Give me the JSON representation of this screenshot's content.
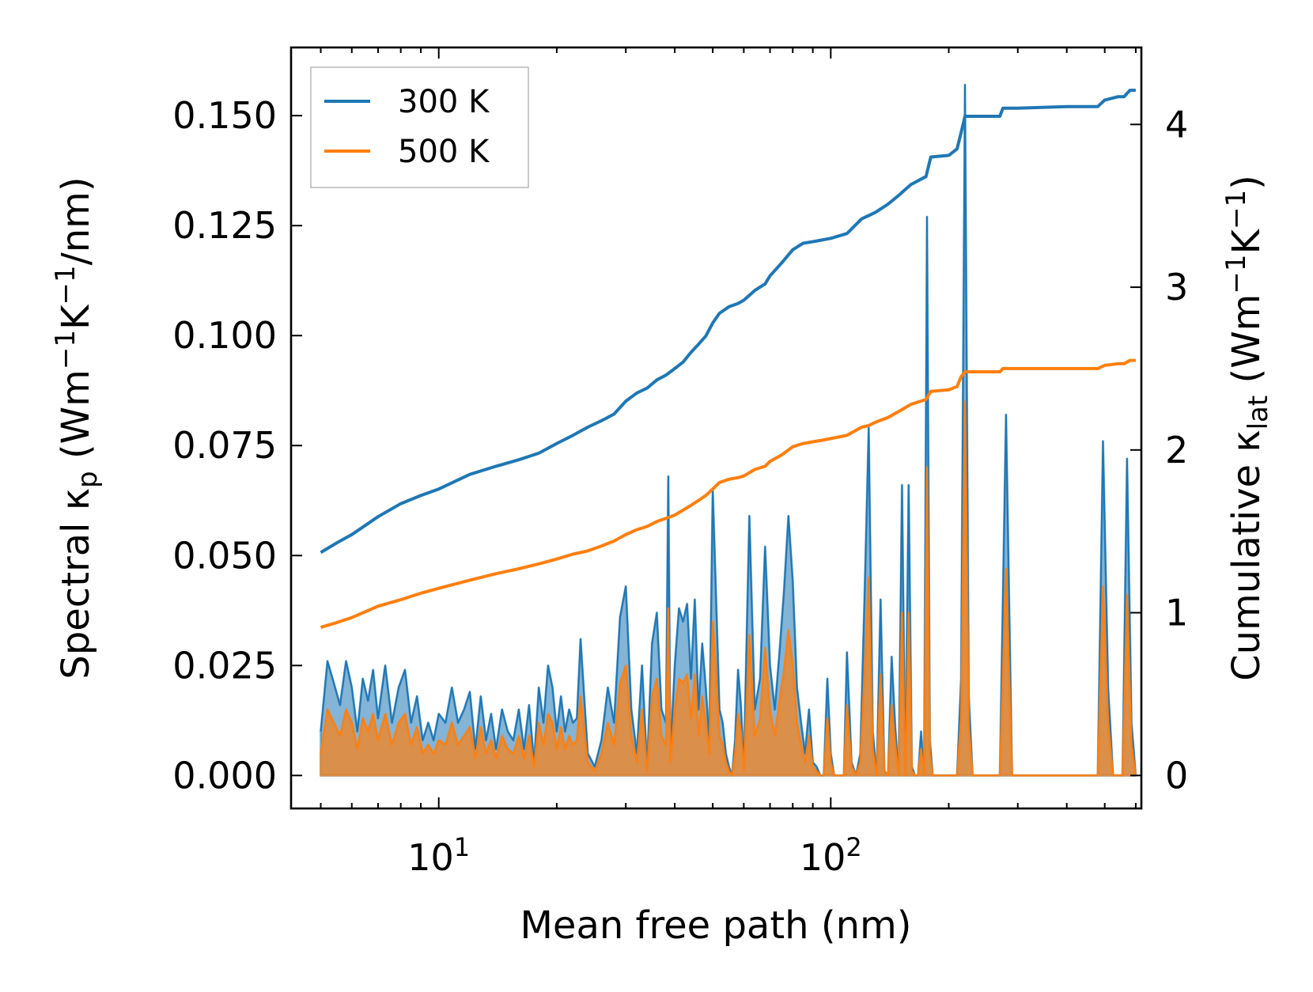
{
  "chart_data": {
    "type": "area",
    "xlabel": "Mean free path (nm)",
    "ylabel": "Spectral κ_p (Wm⁻¹K⁻¹/nm)",
    "ylabel_parts": {
      "pre": "Spectral κ",
      "sub": "p",
      "mid": " (Wm",
      "sup1": "−1",
      "k": "K",
      "sup2": "−1",
      "post": "/nm)"
    },
    "y2label": "Cumulative κ_lat (Wm⁻¹K⁻¹)",
    "y2label_parts": {
      "pre": "Cumulative κ",
      "sub": "lat",
      "mid": " (Wm",
      "sup1": "−1",
      "k": "K",
      "sup2": "−1",
      "post": ")"
    },
    "xscale": "log",
    "xlim": [
      4.2,
      620
    ],
    "ylim": [
      -0.0075,
      0.1655
    ],
    "y2lim": [
      -0.2027,
      4.473
    ],
    "x_ticks": [
      {
        "value": 10,
        "base": "10",
        "exp": "1"
      },
      {
        "value": 100,
        "base": "10",
        "exp": "2"
      }
    ],
    "y_ticks": [
      0.0,
      0.025,
      0.05,
      0.075,
      0.1,
      0.125,
      0.15
    ],
    "y_tick_labels": [
      "0.000",
      "0.025",
      "0.050",
      "0.075",
      "0.100",
      "0.125",
      "0.150"
    ],
    "y2_ticks": [
      0,
      1,
      2,
      3,
      4
    ],
    "y2_tick_labels": [
      "0",
      "1",
      "2",
      "3",
      "4"
    ],
    "legend": {
      "position": "top-left",
      "entries": [
        {
          "label": "300 K",
          "color": "#1f77b4"
        },
        {
          "label": "500 K",
          "color": "#ff7f0e"
        }
      ]
    },
    "spectral_series": [
      {
        "name": "300 K",
        "color": "#1f77b4",
        "x": [
          5.0,
          5.2,
          5.4,
          5.6,
          5.8,
          6.0,
          6.2,
          6.4,
          6.6,
          6.8,
          7.0,
          7.3,
          7.6,
          7.9,
          8.2,
          8.5,
          8.8,
          9.1,
          9.4,
          9.7,
          10.0,
          10.4,
          10.8,
          11.2,
          11.6,
          12.0,
          12.4,
          12.8,
          13.2,
          13.6,
          14.0,
          14.5,
          15.0,
          15.5,
          16.0,
          16.5,
          17.0,
          17.5,
          18.0,
          18.5,
          19.0,
          19.5,
          20.0,
          20.5,
          21.0,
          21.5,
          22.0,
          22.5,
          23.0,
          24.0,
          25.0,
          26.0,
          27.0,
          28.0,
          29.0,
          30.0,
          31.0,
          32.0,
          33.0,
          34.0,
          35.0,
          36.0,
          37.0,
          38.0,
          38.5,
          39.0,
          40.0,
          41.0,
          42.0,
          43.0,
          44.0,
          45.0,
          46.0,
          47.0,
          48.0,
          49.0,
          50.0,
          51.0,
          52.0,
          53.0,
          54.0,
          55.0,
          56.0,
          57.0,
          58.0,
          59.0,
          60.0,
          62.0,
          64.0,
          66.0,
          68.0,
          70.0,
          72.0,
          74.0,
          76.0,
          78.0,
          80.0,
          82.0,
          84.0,
          86.0,
          88.0,
          90.0,
          92.0,
          94.0,
          96.0,
          98.0,
          100.0,
          102.0,
          104.0,
          106.0,
          108.0,
          110.0,
          113.0,
          116.0,
          119.0,
          122.0,
          125.0,
          128.0,
          131.0,
          134.0,
          137.0,
          140.0,
          143.0,
          146.0,
          149.0,
          152.0,
          155.0,
          158.0,
          161.0,
          164.0,
          167.0,
          170.0,
          173.0,
          176.0,
          179.0,
          182.0,
          185.0,
          200.0,
          210.0,
          215.0,
          220.0,
          225.0,
          230.0,
          240.0,
          250.0,
          260.0,
          270.0,
          280.0,
          290.0,
          300.0,
          400.0,
          480.0,
          495.0,
          510.0,
          525.0,
          540.0,
          555.0,
          570.0,
          585.0,
          600.0
        ],
        "values": [
          0.01,
          0.026,
          0.021,
          0.016,
          0.026,
          0.02,
          0.01,
          0.022,
          0.017,
          0.024,
          0.013,
          0.025,
          0.012,
          0.02,
          0.024,
          0.012,
          0.018,
          0.008,
          0.012,
          0.008,
          0.014,
          0.012,
          0.02,
          0.012,
          0.015,
          0.019,
          0.006,
          0.018,
          0.008,
          0.014,
          0.006,
          0.015,
          0.01,
          0.008,
          0.015,
          0.006,
          0.016,
          0.003,
          0.02,
          0.012,
          0.025,
          0.02,
          0.01,
          0.018,
          0.01,
          0.015,
          0.012,
          0.013,
          0.031,
          0.005,
          0.002,
          0.008,
          0.02,
          0.012,
          0.036,
          0.043,
          0.015,
          0.005,
          0.025,
          0.002,
          0.03,
          0.037,
          0.015,
          0.012,
          0.068,
          0.005,
          0.025,
          0.038,
          0.035,
          0.039,
          0.022,
          0.04,
          0.015,
          0.03,
          0.02,
          0.008,
          0.065,
          0.04,
          0.015,
          0.012,
          0.005,
          0.002,
          0.0,
          0.008,
          0.024,
          0.016,
          0.002,
          0.059,
          0.015,
          0.022,
          0.052,
          0.025,
          0.015,
          0.028,
          0.042,
          0.059,
          0.044,
          0.02,
          0.012,
          0.005,
          0.015,
          0.003,
          0.002,
          0.0,
          0.0,
          0.022,
          0.005,
          0.0,
          0.0,
          0.0,
          0.0,
          0.028,
          0.003,
          0.0,
          0.005,
          0.041,
          0.079,
          0.01,
          0.0,
          0.04,
          0.001,
          0.0,
          0.027,
          0.011,
          0.0,
          0.066,
          0.0,
          0.066,
          0.002,
          0.0,
          0.0,
          0.01,
          0.0,
          0.127,
          0.008,
          0.0,
          0.0,
          0.0,
          0.0,
          0.022,
          0.157,
          0.018,
          0.0,
          0.0,
          0.0,
          0.0,
          0.0,
          0.082,
          0.0,
          0.0,
          0.0,
          0.0,
          0.076,
          0.02,
          0.0,
          0.0,
          0.0,
          0.072,
          0.012,
          0.0
        ]
      },
      {
        "name": "500 K",
        "color": "#ff7f0e",
        "x": [
          5.0,
          5.2,
          5.4,
          5.6,
          5.8,
          6.0,
          6.2,
          6.4,
          6.6,
          6.8,
          7.0,
          7.3,
          7.6,
          7.9,
          8.2,
          8.5,
          8.8,
          9.1,
          9.4,
          9.7,
          10.0,
          10.4,
          10.8,
          11.2,
          11.6,
          12.0,
          12.4,
          12.8,
          13.2,
          13.6,
          14.0,
          14.5,
          15.0,
          15.5,
          16.0,
          16.5,
          17.0,
          17.5,
          18.0,
          18.5,
          19.0,
          19.5,
          20.0,
          20.5,
          21.0,
          21.5,
          22.0,
          22.5,
          23.0,
          24.0,
          25.0,
          26.0,
          27.0,
          28.0,
          29.0,
          30.0,
          31.0,
          32.0,
          33.0,
          34.0,
          35.0,
          36.0,
          37.0,
          38.0,
          38.5,
          39.0,
          40.0,
          41.0,
          42.0,
          43.0,
          44.0,
          45.0,
          46.0,
          47.0,
          48.0,
          49.0,
          50.0,
          51.0,
          52.0,
          53.0,
          54.0,
          55.0,
          56.0,
          57.0,
          58.0,
          59.0,
          60.0,
          62.0,
          64.0,
          66.0,
          68.0,
          70.0,
          72.0,
          74.0,
          76.0,
          78.0,
          80.0,
          82.0,
          84.0,
          86.0,
          88.0,
          90.0,
          92.0,
          94.0,
          96.0,
          98.0,
          100.0,
          102.0,
          104.0,
          106.0,
          108.0,
          110.0,
          113.0,
          116.0,
          119.0,
          122.0,
          125.0,
          128.0,
          131.0,
          134.0,
          137.0,
          140.0,
          143.0,
          146.0,
          149.0,
          152.0,
          155.0,
          158.0,
          161.0,
          164.0,
          167.0,
          170.0,
          173.0,
          176.0,
          179.0,
          182.0,
          185.0,
          200.0,
          210.0,
          215.0,
          220.0,
          225.0,
          230.0,
          240.0,
          250.0,
          260.0,
          270.0,
          280.0,
          290.0,
          300.0,
          400.0,
          480.0,
          495.0,
          510.0,
          525.0,
          540.0,
          555.0,
          570.0,
          585.0,
          600.0
        ],
        "values": [
          0.005,
          0.015,
          0.012,
          0.009,
          0.015,
          0.012,
          0.006,
          0.013,
          0.01,
          0.014,
          0.008,
          0.014,
          0.007,
          0.012,
          0.014,
          0.007,
          0.011,
          0.005,
          0.007,
          0.005,
          0.008,
          0.007,
          0.012,
          0.007,
          0.009,
          0.011,
          0.004,
          0.011,
          0.005,
          0.008,
          0.004,
          0.009,
          0.006,
          0.005,
          0.009,
          0.004,
          0.009,
          0.002,
          0.012,
          0.007,
          0.014,
          0.012,
          0.006,
          0.011,
          0.006,
          0.009,
          0.007,
          0.008,
          0.018,
          0.003,
          0.001,
          0.005,
          0.012,
          0.007,
          0.021,
          0.025,
          0.009,
          0.003,
          0.015,
          0.001,
          0.018,
          0.022,
          0.009,
          0.007,
          0.038,
          0.003,
          0.015,
          0.022,
          0.021,
          0.023,
          0.013,
          0.023,
          0.009,
          0.018,
          0.012,
          0.005,
          0.035,
          0.023,
          0.009,
          0.007,
          0.003,
          0.001,
          0.0,
          0.005,
          0.014,
          0.01,
          0.001,
          0.032,
          0.009,
          0.013,
          0.029,
          0.015,
          0.009,
          0.017,
          0.024,
          0.033,
          0.025,
          0.012,
          0.007,
          0.003,
          0.009,
          0.002,
          0.001,
          0.0,
          0.0,
          0.013,
          0.003,
          0.0,
          0.0,
          0.0,
          0.0,
          0.016,
          0.002,
          0.0,
          0.003,
          0.024,
          0.045,
          0.006,
          0.0,
          0.023,
          0.001,
          0.0,
          0.016,
          0.007,
          0.0,
          0.037,
          0.0,
          0.037,
          0.001,
          0.0,
          0.0,
          0.006,
          0.0,
          0.07,
          0.005,
          0.0,
          0.0,
          0.0,
          0.0,
          0.013,
          0.085,
          0.011,
          0.0,
          0.0,
          0.0,
          0.0,
          0.0,
          0.047,
          0.0,
          0.0,
          0.0,
          0.0,
          0.043,
          0.012,
          0.0,
          0.0,
          0.0,
          0.041,
          0.007,
          0.0
        ]
      }
    ],
    "cumulative_series": [
      {
        "name": "300 K",
        "color": "#1f77b4",
        "x": [
          5.0,
          5.5,
          6.0,
          7.0,
          8.0,
          9.0,
          10.0,
          12.0,
          14.0,
          16.0,
          18.0,
          20.0,
          22.0,
          24.0,
          26.0,
          28.0,
          30.0,
          32.0,
          34.0,
          36.0,
          38.0,
          40.0,
          42.0,
          44.0,
          46.0,
          48.0,
          50.0,
          52.0,
          55.0,
          58.0,
          60.0,
          64.0,
          68.0,
          70.0,
          75.0,
          80.0,
          85.0,
          90.0,
          95.0,
          100.0,
          110.0,
          120.0,
          125.0,
          130.0,
          140.0,
          150.0,
          160.0,
          175.0,
          180.0,
          200.0,
          210.0,
          215.0,
          220.0,
          250.0,
          270.0,
          275.0,
          300.0,
          400.0,
          480.0,
          500.0,
          540.0,
          560.0,
          580.0,
          600.0
        ],
        "values": [
          1.37,
          1.43,
          1.48,
          1.59,
          1.67,
          1.72,
          1.76,
          1.85,
          1.9,
          1.94,
          1.98,
          2.04,
          2.09,
          2.14,
          2.18,
          2.22,
          2.3,
          2.35,
          2.38,
          2.43,
          2.46,
          2.5,
          2.54,
          2.6,
          2.65,
          2.7,
          2.78,
          2.84,
          2.88,
          2.9,
          2.92,
          2.98,
          3.02,
          3.07,
          3.15,
          3.23,
          3.27,
          3.28,
          3.29,
          3.3,
          3.33,
          3.42,
          3.44,
          3.46,
          3.51,
          3.57,
          3.63,
          3.68,
          3.8,
          3.81,
          3.85,
          3.95,
          4.05,
          4.05,
          4.05,
          4.1,
          4.1,
          4.11,
          4.11,
          4.15,
          4.17,
          4.17,
          4.21,
          4.21
        ]
      },
      {
        "name": "500 K",
        "color": "#ff7f0e",
        "x": [
          5.0,
          5.5,
          6.0,
          7.0,
          8.0,
          9.0,
          10.0,
          12.0,
          14.0,
          16.0,
          18.0,
          20.0,
          22.0,
          24.0,
          26.0,
          28.0,
          30.0,
          32.0,
          34.0,
          36.0,
          38.0,
          40.0,
          42.0,
          44.0,
          46.0,
          48.0,
          50.0,
          52.0,
          55.0,
          58.0,
          60.0,
          64.0,
          68.0,
          70.0,
          75.0,
          80.0,
          85.0,
          90.0,
          95.0,
          100.0,
          110.0,
          120.0,
          125.0,
          130.0,
          140.0,
          150.0,
          160.0,
          175.0,
          180.0,
          200.0,
          210.0,
          215.0,
          220.0,
          250.0,
          270.0,
          275.0,
          300.0,
          400.0,
          480.0,
          500.0,
          540.0,
          560.0,
          580.0,
          600.0
        ],
        "values": [
          0.91,
          0.94,
          0.97,
          1.04,
          1.08,
          1.12,
          1.15,
          1.2,
          1.24,
          1.27,
          1.3,
          1.33,
          1.36,
          1.38,
          1.41,
          1.44,
          1.48,
          1.51,
          1.53,
          1.56,
          1.58,
          1.6,
          1.63,
          1.66,
          1.69,
          1.72,
          1.76,
          1.8,
          1.82,
          1.83,
          1.84,
          1.88,
          1.9,
          1.93,
          1.97,
          2.02,
          2.04,
          2.05,
          2.06,
          2.07,
          2.09,
          2.14,
          2.15,
          2.17,
          2.2,
          2.24,
          2.28,
          2.31,
          2.36,
          2.37,
          2.39,
          2.45,
          2.48,
          2.48,
          2.48,
          2.5,
          2.5,
          2.5,
          2.5,
          2.52,
          2.53,
          2.53,
          2.55,
          2.55
        ]
      }
    ]
  }
}
